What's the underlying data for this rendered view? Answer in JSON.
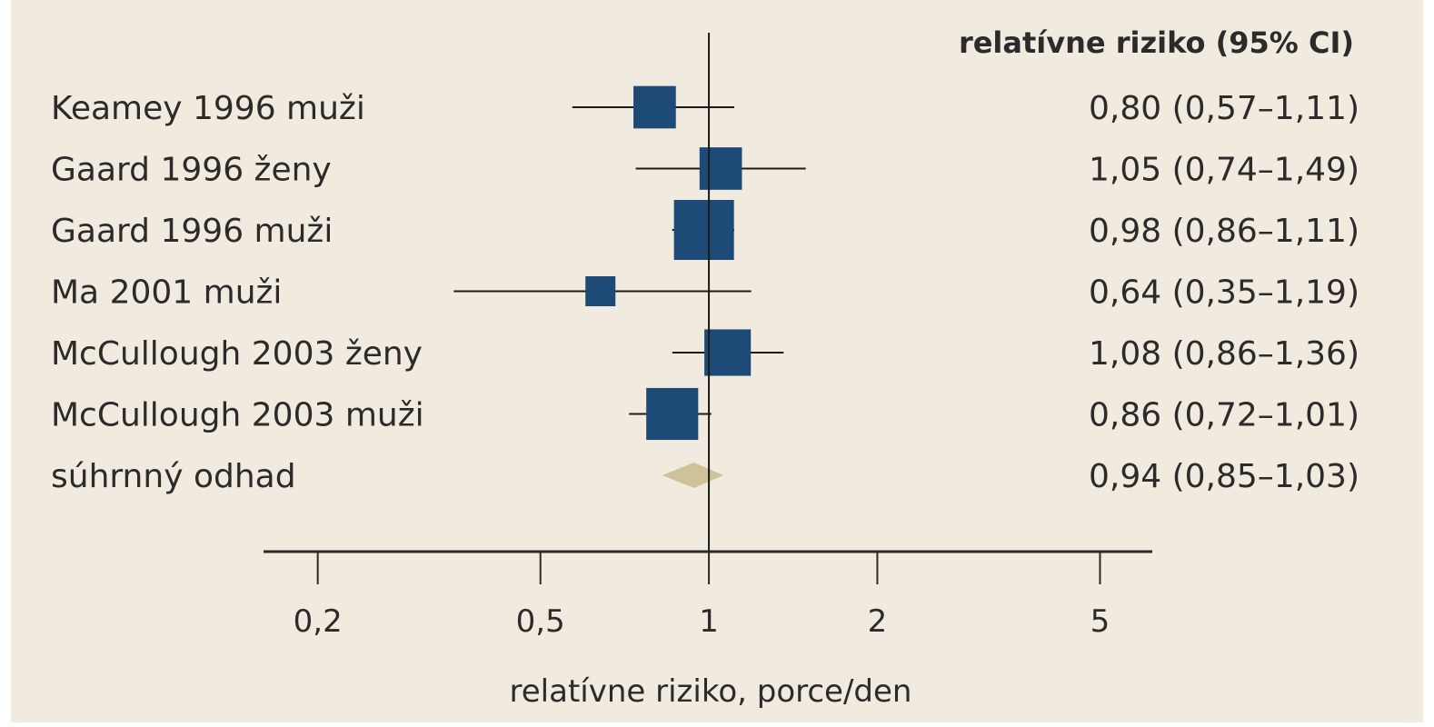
{
  "chart_data": {
    "type": "forest",
    "header": "relatívne riziko (95% CI)",
    "xlabel": "relatívne riziko, porce/den",
    "x_scale": "log",
    "xlim": [
      0.16,
      6.2
    ],
    "ticks": [
      {
        "value": 0.2,
        "label": "0,2"
      },
      {
        "value": 0.5,
        "label": "0,5"
      },
      {
        "value": 1,
        "label": "1"
      },
      {
        "value": 2,
        "label": "2"
      },
      {
        "value": 5,
        "label": "5"
      }
    ],
    "reference_value": 1,
    "marker_color": "#1d4a76",
    "summary_color": "#cfc198",
    "studies": [
      {
        "label": "Keamey 1996 muži",
        "rr": 0.8,
        "lo": 0.57,
        "hi": 1.11,
        "weight": 0.5,
        "ci_text": "0,80 (0,57–1,11)"
      },
      {
        "label": "Gaard 1996 ženy",
        "rr": 1.05,
        "lo": 0.74,
        "hi": 1.49,
        "weight": 0.5,
        "ci_text": "1,05 (0,74–1,49)"
      },
      {
        "label": "Gaard 1996 muži",
        "rr": 0.98,
        "lo": 0.86,
        "hi": 1.11,
        "weight": 1.0,
        "ci_text": "0,98 (0,86–1,11)"
      },
      {
        "label": "Ma 2001 muži",
        "rr": 0.64,
        "lo": 0.35,
        "hi": 1.19,
        "weight": 0.25,
        "ci_text": "0,64 (0,35–1,19)"
      },
      {
        "label": "McCullough 2003 ženy",
        "rr": 1.08,
        "lo": 0.86,
        "hi": 1.36,
        "weight": 0.6,
        "ci_text": "1,08 (0,86–1,36)"
      },
      {
        "label": "McCullough 2003 muži",
        "rr": 0.86,
        "lo": 0.72,
        "hi": 1.01,
        "weight": 0.75,
        "ci_text": "0,86 (0,72–1,01)"
      }
    ],
    "summary": {
      "label": "súhrnný odhad",
      "rr": 0.94,
      "lo": 0.85,
      "hi": 1.03,
      "ci_text": "0,94 (0,85–1,03)"
    }
  }
}
